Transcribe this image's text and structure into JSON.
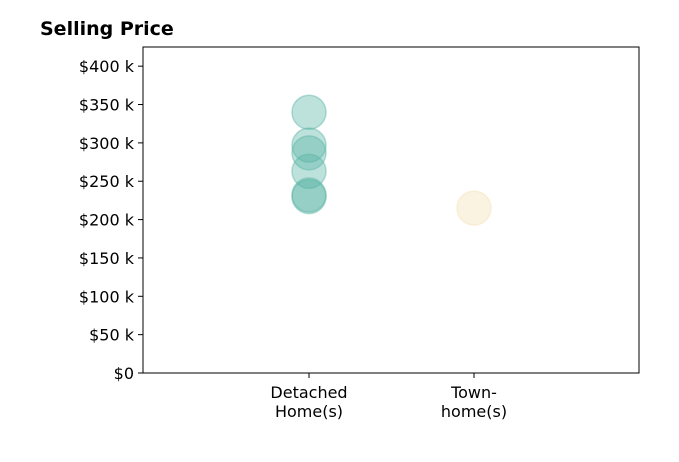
{
  "chart_data": {
    "type": "scatter",
    "title": "Selling Price",
    "xlabel": "",
    "ylabel": "",
    "categories": [
      [
        "Detached",
        "Home(s)"
      ],
      [
        "Town-",
        "home(s)"
      ]
    ],
    "ylim": [
      0,
      425000
    ],
    "y_ticks": [
      0,
      50000,
      100000,
      150000,
      200000,
      250000,
      300000,
      350000,
      400000
    ],
    "y_tick_labels": [
      "$0",
      "$50 k",
      "$100 k",
      "$150 k",
      "$200 k",
      "$250 k",
      "$300 k",
      "$350 k",
      "$400 k"
    ],
    "grid": false,
    "series": [
      {
        "category_index": 0,
        "color": "#5bb5a6",
        "values": [
          340000,
          297000,
          287000,
          263000,
          232000,
          230000
        ]
      },
      {
        "category_index": 1,
        "color": "#f5e0b5",
        "values": [
          215000
        ]
      }
    ]
  }
}
